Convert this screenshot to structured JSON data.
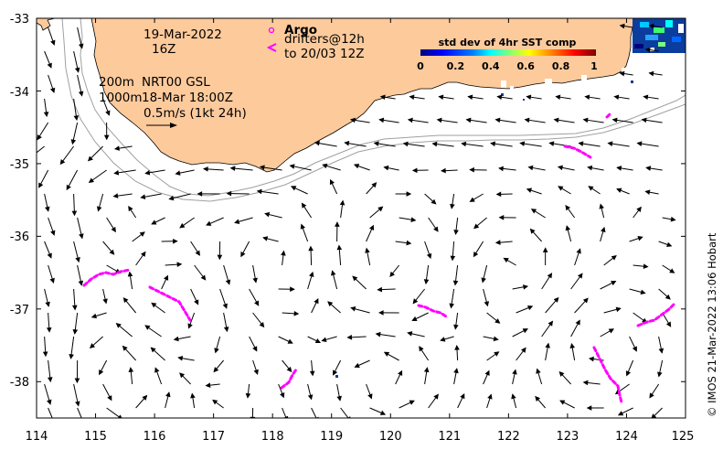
{
  "annotations": {
    "date": "19-Mar-2022",
    "hour": "16Z",
    "argo_label": "Argo",
    "drifters_label": "drifters@12h",
    "drifters_to": "to 20/03 12Z",
    "depth_200": "200m",
    "depth_1000": "1000m",
    "product": "NRT00 GSL",
    "analysis_time": "18-Mar 18:00Z",
    "scale_label": "0.5m/s (1kt 24h)"
  },
  "colorbar": {
    "title": "std dev of 4hr SST comp",
    "ticks": [
      "0",
      "0.2",
      "0.4",
      "0.6",
      "0.8",
      "1"
    ],
    "colors": [
      "#00007f",
      "#0000ff",
      "#007fff",
      "#00ffff",
      "#7fff7f",
      "#ffff00",
      "#ff7f00",
      "#ff0000",
      "#7f0000"
    ]
  },
  "axes": {
    "x_ticks": [
      "114",
      "115",
      "116",
      "117",
      "118",
      "119",
      "120",
      "121",
      "122",
      "123",
      "124",
      "125"
    ],
    "y_ticks": [
      "-33",
      "-34",
      "-35",
      "-36",
      "-37",
      "-38"
    ],
    "lon_range": [
      114,
      125
    ],
    "lat_range": [
      -38.5,
      -33
    ]
  },
  "credit": "© IMOS 21-Mar-2022 13:06 Hobart",
  "colors": {
    "land": "#fdca9c",
    "drifter": "#ff00ff",
    "isobath": "#a0a0a0",
    "arrow": "#000000"
  }
}
